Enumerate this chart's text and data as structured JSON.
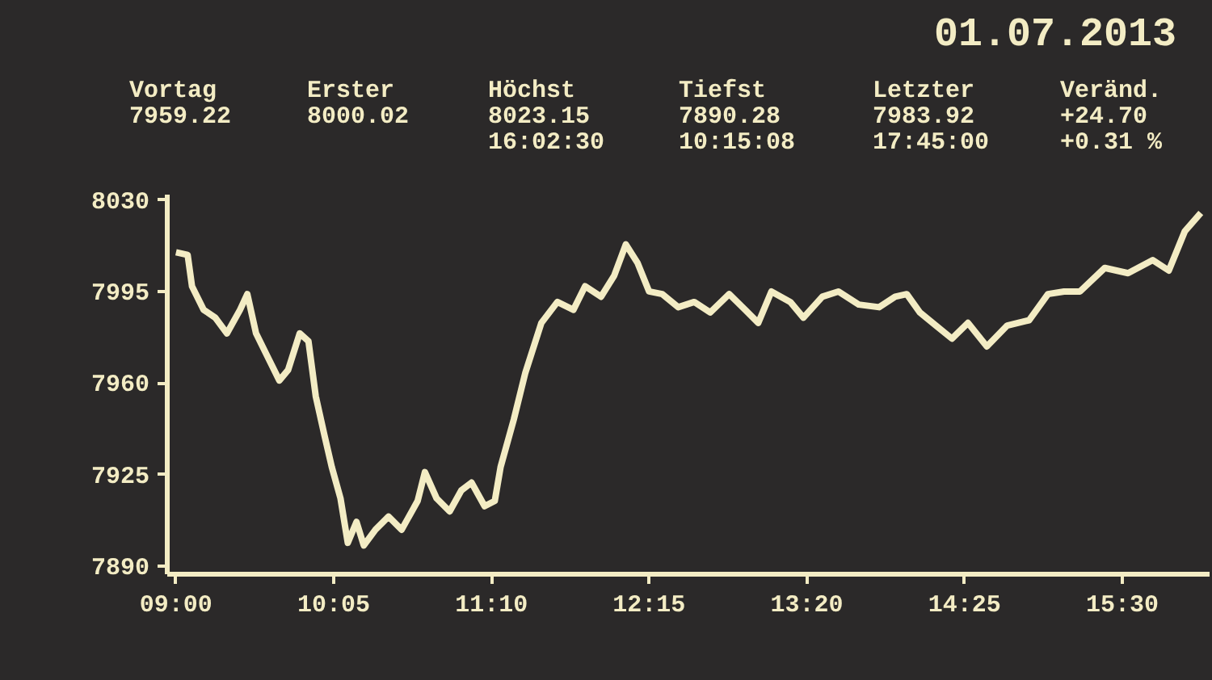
{
  "chart_data": {
    "type": "line",
    "title": "01.07.2013",
    "annotations": [
      "Vortag\n7959.22",
      "Erster\n8000.02",
      "Höchst\n8023.15\n16:02:30",
      "Tiefst\n7890.28\n10:15:08",
      "Letzter\n7983.92\n17:45:00",
      "Veränd.\n+24.70\n+0.31 %"
    ],
    "x": [
      9.0,
      9.08,
      9.11,
      9.19,
      9.27,
      9.35,
      9.44,
      9.49,
      9.55,
      9.63,
      9.71,
      9.77,
      9.85,
      9.91,
      9.96,
      10.02,
      10.07,
      10.13,
      10.18,
      10.24,
      10.29,
      10.37,
      10.46,
      10.55,
      10.66,
      10.71,
      10.79,
      10.88,
      10.96,
      11.03,
      11.12,
      11.19,
      11.23,
      11.32,
      11.4,
      11.51,
      11.62,
      11.73,
      11.81,
      11.92,
      12.01,
      12.09,
      12.17,
      12.25,
      12.34,
      12.45,
      12.56,
      12.67,
      12.8,
      12.91,
      13.0,
      13.09,
      13.22,
      13.31,
      13.44,
      13.55,
      13.69,
      13.83,
      13.94,
      14.02,
      14.11,
      14.22,
      14.33,
      14.44,
      14.57,
      14.71,
      14.86,
      14.99,
      15.1,
      15.21,
      15.38,
      15.54,
      15.71,
      15.82,
      15.93,
      16.04
    ],
    "series": [
      {
        "color": "#f3ecc4",
        "values": [
          8010,
          8009,
          7997,
          7988,
          7985,
          7979,
          7988,
          7994,
          7979,
          7970,
          7961,
          7965,
          7979,
          7976,
          7955,
          7940,
          7928,
          7916,
          7899,
          7907,
          7898,
          7904,
          7909,
          7904,
          7915,
          7926,
          7916,
          7911,
          7919,
          7922,
          7913,
          7915,
          7928,
          7946,
          7964,
          7983,
          7991,
          7988,
          7997,
          7993,
          8001,
          8013,
          8006,
          7995,
          7994,
          7989,
          7991,
          7987,
          7994,
          7988,
          7983,
          7995,
          7991,
          7985,
          7993,
          7995,
          7990,
          7989,
          7993,
          7994,
          7987,
          7982,
          7977,
          7983,
          7974,
          7982,
          7984,
          7994,
          7995,
          7995,
          8004,
          8002,
          8007,
          8003,
          8018,
          8025
        ]
      }
    ],
    "xlim": [
      8.94,
      16.1
    ],
    "ylim": [
      7887,
      8032
    ],
    "xticks": [
      {
        "value": 9,
        "label": "09:00"
      },
      {
        "value": 10.0833,
        "label": "10:05"
      },
      {
        "value": 11.1667,
        "label": "11:10"
      },
      {
        "value": 12.25,
        "label": "12:15"
      },
      {
        "value": 13.3333,
        "label": "13:20"
      },
      {
        "value": 14.4167,
        "label": "14:25"
      },
      {
        "value": 15.5,
        "label": "15:30"
      }
    ],
    "yticks": [
      7890,
      7925,
      7960,
      7995,
      8030
    ],
    "grid": false,
    "marker": "none",
    "line_style": "solid"
  }
}
